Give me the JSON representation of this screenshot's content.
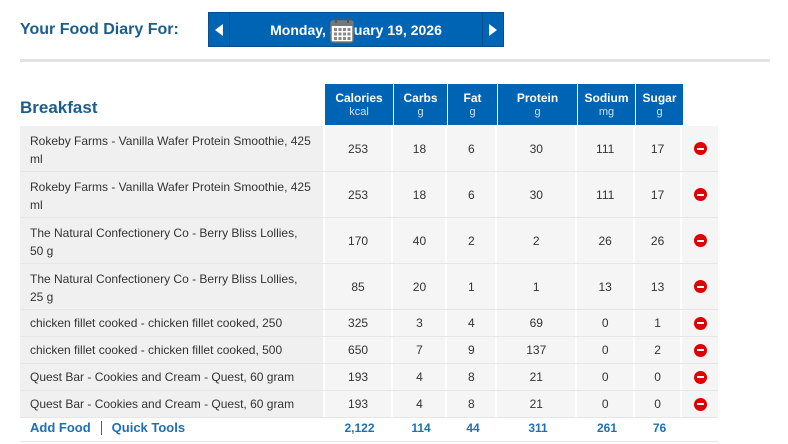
{
  "header": {
    "title": "Your Food Diary For:",
    "date": "Monday, January 19, 2026"
  },
  "meal": {
    "title": "Breakfast",
    "columns": [
      {
        "label": "Calories",
        "unit": "kcal"
      },
      {
        "label": "Carbs",
        "unit": "g"
      },
      {
        "label": "Fat",
        "unit": "g"
      },
      {
        "label": "Protein",
        "unit": "g"
      },
      {
        "label": "Sodium",
        "unit": "mg"
      },
      {
        "label": "Sugar",
        "unit": "g"
      }
    ],
    "rows": [
      {
        "name": "Rokeby Farms - Vanilla Wafer Protein Smoothie, 425 ml",
        "calories": "253",
        "carbs": "18",
        "fat": "6",
        "protein": "30",
        "sodium": "111",
        "sugar": "17"
      },
      {
        "name": "Rokeby Farms - Vanilla Wafer Protein Smoothie, 425 ml",
        "calories": "253",
        "carbs": "18",
        "fat": "6",
        "protein": "30",
        "sodium": "111",
        "sugar": "17"
      },
      {
        "name": "The Natural Confectionery Co - Berry Bliss Lollies, 50 g",
        "calories": "170",
        "carbs": "40",
        "fat": "2",
        "protein": "2",
        "sodium": "26",
        "sugar": "26"
      },
      {
        "name": "The Natural Confectionery Co - Berry Bliss Lollies, 25 g",
        "calories": "85",
        "carbs": "20",
        "fat": "1",
        "protein": "1",
        "sodium": "13",
        "sugar": "13"
      },
      {
        "name": "chicken fillet cooked - chicken fillet cooked, 250 gram",
        "calories": "325",
        "carbs": "3",
        "fat": "4",
        "protein": "69",
        "sodium": "0",
        "sugar": "1"
      },
      {
        "name": "chicken fillet cooked - chicken fillet cooked, 500 gram",
        "calories": "650",
        "carbs": "7",
        "fat": "9",
        "protein": "137",
        "sodium": "0",
        "sugar": "2"
      },
      {
        "name": "Quest Bar - Cookies and Cream - Quest, 60 gram",
        "calories": "193",
        "carbs": "4",
        "fat": "8",
        "protein": "21",
        "sodium": "0",
        "sugar": "0"
      },
      {
        "name": "Quest Bar - Cookies and Cream - Quest, 60 gram",
        "calories": "193",
        "carbs": "4",
        "fat": "8",
        "protein": "21",
        "sodium": "0",
        "sugar": "0"
      }
    ],
    "totals": {
      "calories": "2,122",
      "carbs": "114",
      "fat": "44",
      "protein": "311",
      "sodium": "261",
      "sugar": "76"
    },
    "actions": {
      "add_food": "Add Food",
      "quick_tools": "Quick Tools"
    }
  },
  "colors": {
    "primary": "#0064b4",
    "title": "#1b5e8c",
    "link": "#1e6fb8",
    "delete": "#e00000"
  }
}
